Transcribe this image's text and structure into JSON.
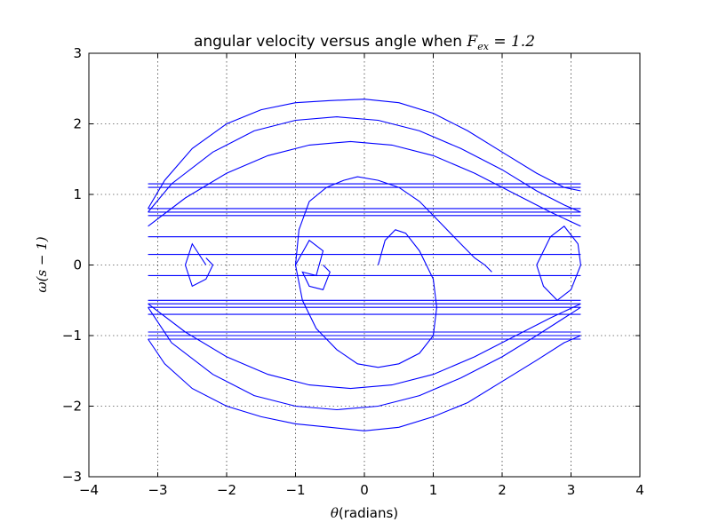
{
  "chart_data": {
    "type": "line",
    "title_text": "angular velocity versus angle when ",
    "title_math": "F",
    "title_math_sub": "ex",
    "title_math_rest": " = 1.2",
    "xlabel_math": "θ",
    "xlabel_text": "(radians)",
    "ylabel_math": "ω(s − 1)",
    "xlim": [
      -4,
      4
    ],
    "ylim": [
      -3,
      3
    ],
    "xticks": [
      -4,
      -3,
      -2,
      -1,
      0,
      1,
      2,
      3,
      4
    ],
    "yticks": [
      -3,
      -2,
      -1,
      0,
      1,
      2,
      3
    ],
    "xtick_labels": [
      "−4",
      "−3",
      "−2",
      "−1",
      "0",
      "1",
      "2",
      "3",
      "4"
    ],
    "ytick_labels": [
      "−3",
      "−2",
      "−1",
      "0",
      "1",
      "2",
      "3"
    ],
    "grid": true,
    "line_color": "#0000ff",
    "series": [
      {
        "x": [
          0.2,
          0.3,
          0.45,
          0.6,
          0.8,
          1.0,
          1.05,
          1.0,
          0.8,
          0.5,
          0.2,
          -0.1,
          -0.4,
          -0.7,
          -0.9,
          -1.0,
          -0.95,
          -0.8,
          -0.55,
          -0.3,
          -0.1,
          0.2,
          0.5,
          0.8,
          1.1,
          1.4,
          1.6,
          1.75,
          1.85
        ],
        "y": [
          0.0,
          0.35,
          0.5,
          0.45,
          0.2,
          -0.2,
          -0.6,
          -1.0,
          -1.25,
          -1.4,
          -1.45,
          -1.4,
          -1.2,
          -0.9,
          -0.5,
          0.0,
          0.5,
          0.9,
          1.1,
          1.2,
          1.25,
          1.2,
          1.1,
          0.9,
          0.6,
          0.3,
          0.1,
          0.0,
          -0.1
        ]
      },
      {
        "x": [
          -3.14,
          -2.9,
          -2.5,
          -2.0,
          -1.5,
          -1.0,
          -0.5,
          0.0,
          0.5,
          1.0,
          1.5,
          2.0,
          2.5,
          2.9,
          3.14
        ],
        "y": [
          0.8,
          1.2,
          1.65,
          2.0,
          2.2,
          2.3,
          2.33,
          2.35,
          2.3,
          2.15,
          1.9,
          1.6,
          1.3,
          1.1,
          1.05
        ]
      },
      {
        "x": [
          -3.14,
          -2.9,
          -2.5,
          -2.0,
          -1.5,
          -1.0,
          -0.5,
          0.0,
          0.5,
          1.0,
          1.5,
          2.0,
          2.5,
          2.9,
          3.14
        ],
        "y": [
          -1.05,
          -1.4,
          -1.75,
          -2.0,
          -2.15,
          -2.25,
          -2.3,
          -2.35,
          -2.3,
          -2.15,
          -1.95,
          -1.65,
          -1.35,
          -1.1,
          -1.0
        ]
      },
      {
        "x": [
          -3.14,
          -2.8,
          -2.2,
          -1.6,
          -1.0,
          -0.4,
          0.2,
          0.8,
          1.4,
          2.0,
          2.5,
          2.9,
          3.14
        ],
        "y": [
          0.75,
          1.15,
          1.6,
          1.9,
          2.05,
          2.1,
          2.05,
          1.9,
          1.65,
          1.35,
          1.05,
          0.85,
          0.75
        ]
      },
      {
        "x": [
          -3.14,
          -2.8,
          -2.2,
          -1.6,
          -1.0,
          -0.4,
          0.2,
          0.8,
          1.4,
          2.0,
          2.5,
          2.9,
          3.14
        ],
        "y": [
          -0.6,
          -1.1,
          -1.55,
          -1.85,
          -2.0,
          -2.05,
          -2.0,
          -1.85,
          -1.6,
          -1.3,
          -1.0,
          -0.75,
          -0.6
        ]
      },
      {
        "x": [
          -3.14,
          -2.6,
          -2.0,
          -1.4,
          -0.8,
          -0.2,
          0.4,
          1.0,
          1.6,
          2.2,
          2.7,
          3.14
        ],
        "y": [
          0.55,
          0.95,
          1.3,
          1.55,
          1.7,
          1.75,
          1.7,
          1.55,
          1.3,
          1.0,
          0.75,
          0.55
        ]
      },
      {
        "x": [
          -3.14,
          -2.6,
          -2.0,
          -1.4,
          -0.8,
          -0.2,
          0.4,
          1.0,
          1.6,
          2.2,
          2.7,
          3.14
        ],
        "y": [
          -0.55,
          -0.95,
          -1.3,
          -1.55,
          -1.7,
          -1.75,
          -1.7,
          -1.55,
          -1.3,
          -1.0,
          -0.75,
          -0.55
        ]
      },
      {
        "x": [
          -2.3,
          -2.5,
          -2.6,
          -2.5,
          -2.3,
          -2.2,
          -2.3
        ],
        "y": [
          0.0,
          0.3,
          0.0,
          -0.3,
          -0.2,
          0.0,
          0.1
        ]
      },
      {
        "x": [
          -1.0,
          -0.8,
          -0.6,
          -0.7,
          -0.9,
          -0.8,
          -0.6,
          -0.5,
          -0.6
        ],
        "y": [
          0.0,
          0.35,
          0.2,
          -0.15,
          -0.1,
          -0.3,
          -0.35,
          -0.1,
          0.0
        ]
      },
      {
        "x": [
          2.5,
          2.7,
          2.9,
          3.1,
          3.14,
          3.0,
          2.8,
          2.6,
          2.5
        ],
        "y": [
          0.0,
          0.4,
          0.55,
          0.3,
          0.0,
          -0.35,
          -0.5,
          -0.3,
          0.0
        ]
      },
      {
        "x": [
          -3.14,
          3.14
        ],
        "y": [
          1.15,
          1.15
        ]
      },
      {
        "x": [
          -3.14,
          3.14
        ],
        "y": [
          1.1,
          1.1
        ]
      },
      {
        "x": [
          -3.14,
          3.14
        ],
        "y": [
          0.8,
          0.8
        ]
      },
      {
        "x": [
          -3.14,
          3.14
        ],
        "y": [
          0.75,
          0.75
        ]
      },
      {
        "x": [
          -3.14,
          3.14
        ],
        "y": [
          0.7,
          0.7
        ]
      },
      {
        "x": [
          -3.14,
          3.14
        ],
        "y": [
          0.4,
          0.4
        ]
      },
      {
        "x": [
          -3.14,
          3.14
        ],
        "y": [
          0.15,
          0.15
        ]
      },
      {
        "x": [
          -3.14,
          3.14
        ],
        "y": [
          -0.15,
          -0.15
        ]
      },
      {
        "x": [
          -3.14,
          3.14
        ],
        "y": [
          -0.5,
          -0.5
        ]
      },
      {
        "x": [
          -3.14,
          3.14
        ],
        "y": [
          -0.55,
          -0.55
        ]
      },
      {
        "x": [
          -3.14,
          3.14
        ],
        "y": [
          -0.6,
          -0.6
        ]
      },
      {
        "x": [
          -3.14,
          3.14
        ],
        "y": [
          -0.7,
          -0.7
        ]
      },
      {
        "x": [
          -3.14,
          3.14
        ],
        "y": [
          -0.95,
          -0.95
        ]
      },
      {
        "x": [
          -3.14,
          3.14
        ],
        "y": [
          -1.0,
          -1.0
        ]
      },
      {
        "x": [
          -3.14,
          3.14
        ],
        "y": [
          -1.05,
          -1.05
        ]
      }
    ]
  }
}
